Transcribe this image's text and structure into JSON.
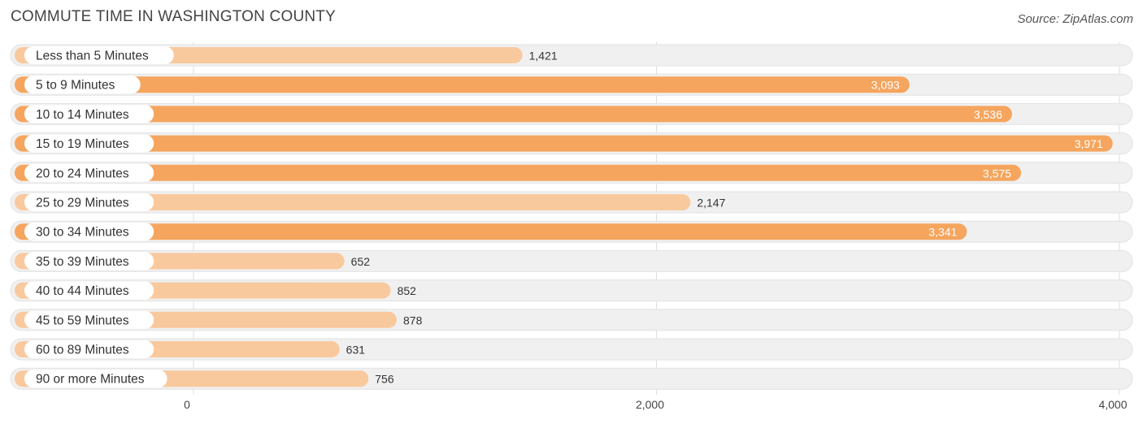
{
  "title": "COMMUTE TIME IN WASHINGTON COUNTY",
  "source": "Source: ZipAtlas.com",
  "chart_data": {
    "type": "bar",
    "orientation": "horizontal",
    "categories": [
      "Less than 5 Minutes",
      "5 to 9 Minutes",
      "10 to 14 Minutes",
      "15 to 19 Minutes",
      "20 to 24 Minutes",
      "25 to 29 Minutes",
      "30 to 34 Minutes",
      "35 to 39 Minutes",
      "40 to 44 Minutes",
      "45 to 59 Minutes",
      "60 to 89 Minutes",
      "90 or more Minutes"
    ],
    "values": [
      1421,
      3093,
      3536,
      3971,
      3575,
      2147,
      3341,
      652,
      852,
      878,
      631,
      756
    ],
    "value_labels": [
      "1,421",
      "3,093",
      "3,536",
      "3,971",
      "3,575",
      "2,147",
      "3,341",
      "652",
      "852",
      "878",
      "631",
      "756"
    ],
    "xticks": [
      0,
      2000,
      4000
    ],
    "xtick_labels": [
      "0",
      "2,000",
      "4,000"
    ],
    "xlim": [
      0,
      4000
    ],
    "grid": true,
    "colors": {
      "high": "#f5a55e",
      "low": "#f9c99e",
      "track": "#f0f0f0",
      "track_border": "#e2e2e2"
    }
  }
}
